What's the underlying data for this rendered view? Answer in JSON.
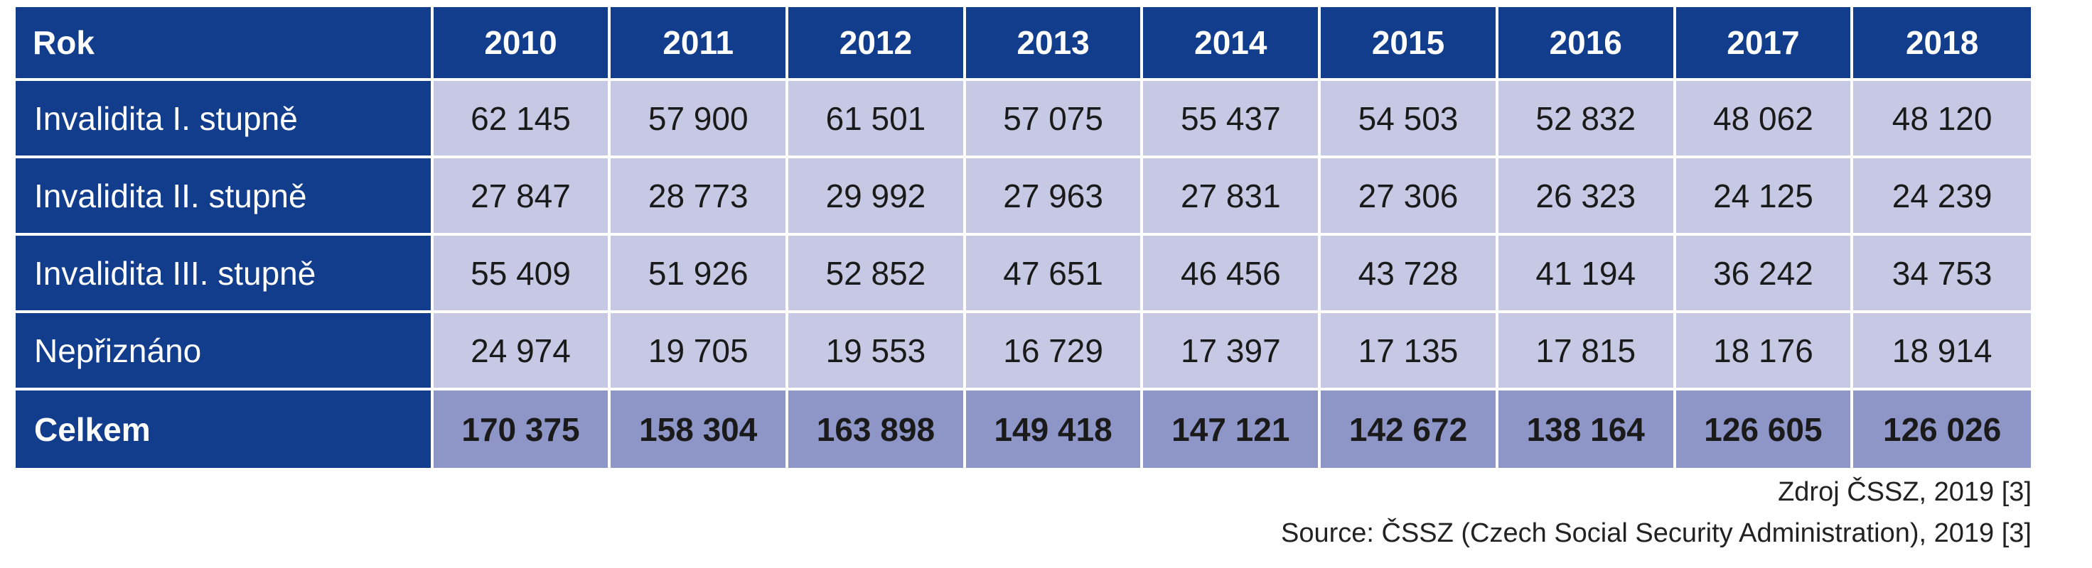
{
  "table": {
    "header_label": "Rok",
    "years": [
      "2010",
      "2011",
      "2012",
      "2013",
      "2014",
      "2015",
      "2016",
      "2017",
      "2018"
    ],
    "rows": [
      {
        "label": "Invalidita I. stupně",
        "values": [
          "62 145",
          "57 900",
          "61 501",
          "57 075",
          "55 437",
          "54 503",
          "52 832",
          "48 062",
          "48 120"
        ]
      },
      {
        "label": "Invalidita II. stupně",
        "values": [
          "27 847",
          "28 773",
          "29 992",
          "27 963",
          "27 831",
          "27 306",
          "26 323",
          "24 125",
          "24 239"
        ]
      },
      {
        "label": "Invalidita III. stupně",
        "values": [
          "55 409",
          "51 926",
          "52 852",
          "47 651",
          "46 456",
          "43 728",
          "41 194",
          "36 242",
          "34 753"
        ]
      },
      {
        "label": "Nepřiznáno",
        "values": [
          "24 974",
          "19 705",
          "19 553",
          "16 729",
          "17 397",
          "17 135",
          "17 815",
          "18 176",
          "18 914"
        ]
      }
    ],
    "total": {
      "label": "Celkem",
      "values": [
        "170 375",
        "158 304",
        "163 898",
        "149 418",
        "147 121",
        "142 672",
        "138 164",
        "126 605",
        "126 026"
      ]
    }
  },
  "source": {
    "czech": "Zdroj ČSSZ, 2019 [3]",
    "english": "Source: ČSSZ (Czech Social Security Administration), 2019 [3]"
  },
  "colors": {
    "header_bg": "#123c8c",
    "cell_bg": "#c7c9e4",
    "total_bg": "#8e95c7"
  }
}
